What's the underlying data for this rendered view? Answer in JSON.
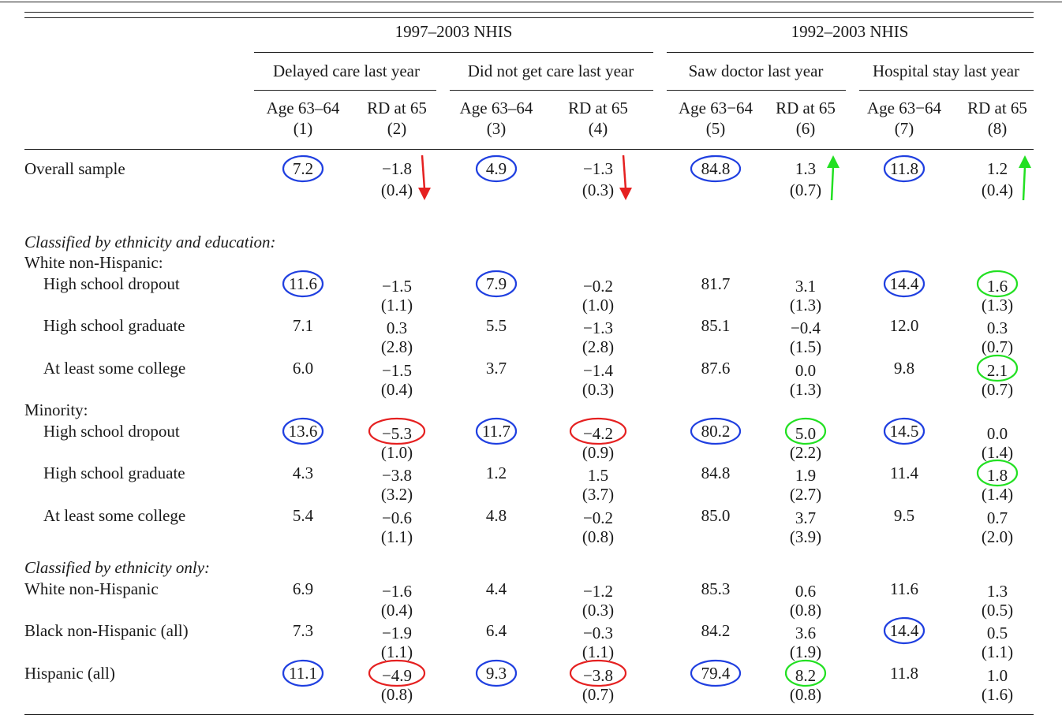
{
  "table": {
    "group_headers": [
      "1997–2003 NHIS",
      "1992–2003 NHIS"
    ],
    "subgroup_headers": [
      "Delayed care last year",
      "Did not get care last year",
      "Saw doctor last year",
      "Hospital stay last year"
    ],
    "column_headers": [
      {
        "label": "Age 63–64",
        "num": "(1)"
      },
      {
        "label": "RD at 65",
        "num": "(2)"
      },
      {
        "label": "Age 63–64",
        "num": "(3)"
      },
      {
        "label": "RD at 65",
        "num": "(4)"
      },
      {
        "label": "Age 63−64",
        "num": "(5)"
      },
      {
        "label": "RD at 65",
        "num": "(6)"
      },
      {
        "label": "Age 63−64",
        "num": "(7)"
      },
      {
        "label": "RD at 65",
        "num": "(8)"
      }
    ],
    "section_headers": [
      "Classified by ethnicity and education:",
      "Classified by ethnicity only:"
    ],
    "group_labels": [
      "White non-Hispanic:",
      "Minority:"
    ],
    "rows": [
      {
        "label": "Overall sample",
        "values": [
          "7.2",
          "−1.8",
          "4.9",
          "−1.3",
          "84.8",
          "1.3",
          "11.8",
          "1.2"
        ],
        "se": [
          "",
          "(0.4)",
          "",
          "(0.3)",
          "",
          "(0.7)",
          "",
          "(0.4)"
        ]
      },
      {
        "label": "High school dropout",
        "values": [
          "11.6",
          "−1.5",
          "7.9",
          "−0.2",
          "81.7",
          "3.1",
          "14.4",
          "1.6"
        ],
        "se": [
          "",
          "(1.1)",
          "",
          "(1.0)",
          "",
          "(1.3)",
          "",
          "(1.3)"
        ]
      },
      {
        "label": "High school graduate",
        "values": [
          "7.1",
          "0.3",
          "5.5",
          "−1.3",
          "85.1",
          "−0.4",
          "12.0",
          "0.3"
        ],
        "se": [
          "",
          "(2.8)",
          "",
          "(2.8)",
          "",
          "(1.5)",
          "",
          "(0.7)"
        ]
      },
      {
        "label": "At least some college",
        "values": [
          "6.0",
          "−1.5",
          "3.7",
          "−1.4",
          "87.6",
          "0.0",
          "9.8",
          "2.1"
        ],
        "se": [
          "",
          "(0.4)",
          "",
          "(0.3)",
          "",
          "(1.3)",
          "",
          "(0.7)"
        ]
      },
      {
        "label": "High school dropout",
        "values": [
          "13.6",
          "−5.3",
          "11.7",
          "−4.2",
          "80.2",
          "5.0",
          "14.5",
          "0.0"
        ],
        "se": [
          "",
          "(1.0)",
          "",
          "(0.9)",
          "",
          "(2.2)",
          "",
          "(1.4)"
        ]
      },
      {
        "label": "High school graduate",
        "values": [
          "4.3",
          "−3.8",
          "1.2",
          "1.5",
          "84.8",
          "1.9",
          "11.4",
          "1.8"
        ],
        "se": [
          "",
          "(3.2)",
          "",
          "(3.7)",
          "",
          "(2.7)",
          "",
          "(1.4)"
        ]
      },
      {
        "label": "At least some college",
        "values": [
          "5.4",
          "−0.6",
          "4.8",
          "−0.2",
          "85.0",
          "3.7",
          "9.5",
          "0.7"
        ],
        "se": [
          "",
          "(1.1)",
          "",
          "(0.8)",
          "",
          "(3.9)",
          "",
          "(2.0)"
        ]
      },
      {
        "label": "White non-Hispanic",
        "values": [
          "6.9",
          "−1.6",
          "4.4",
          "−1.2",
          "85.3",
          "0.6",
          "11.6",
          "1.3"
        ],
        "se": [
          "",
          "(0.4)",
          "",
          "(0.3)",
          "",
          "(0.8)",
          "",
          "(0.5)"
        ]
      },
      {
        "label": "Black non-Hispanic (all)",
        "values": [
          "7.3",
          "−1.9",
          "6.4",
          "−0.3",
          "84.2",
          "3.6",
          "14.4",
          "0.5"
        ],
        "se": [
          "",
          "(1.1)",
          "",
          "(1.1)",
          "",
          "(1.9)",
          "",
          "(1.1)"
        ]
      },
      {
        "label": "Hispanic (all)",
        "values": [
          "11.1",
          "−4.9",
          "9.3",
          "−3.8",
          "79.4",
          "8.2",
          "11.8",
          "1.0"
        ],
        "se": [
          "",
          "(0.8)",
          "",
          "(0.7)",
          "",
          "(0.8)",
          "",
          "(1.6)"
        ]
      }
    ]
  },
  "annotations": {
    "circles": [
      {
        "row": 0,
        "col": 0,
        "color": "#1f3fe0"
      },
      {
        "row": 0,
        "col": 2,
        "color": "#1f3fe0"
      },
      {
        "row": 0,
        "col": 4,
        "color": "#1f3fe0"
      },
      {
        "row": 0,
        "col": 6,
        "color": "#1f3fe0"
      },
      {
        "row": 1,
        "col": 0,
        "color": "#1f3fe0"
      },
      {
        "row": 1,
        "col": 2,
        "color": "#1f3fe0"
      },
      {
        "row": 1,
        "col": 6,
        "color": "#1f3fe0"
      },
      {
        "row": 1,
        "col": 7,
        "color": "#22e022"
      },
      {
        "row": 3,
        "col": 7,
        "color": "#22e022"
      },
      {
        "row": 4,
        "col": 0,
        "color": "#1f3fe0"
      },
      {
        "row": 4,
        "col": 1,
        "color": "#e52020"
      },
      {
        "row": 4,
        "col": 2,
        "color": "#1f3fe0"
      },
      {
        "row": 4,
        "col": 3,
        "color": "#e52020"
      },
      {
        "row": 4,
        "col": 4,
        "color": "#1f3fe0"
      },
      {
        "row": 4,
        "col": 5,
        "color": "#22e022"
      },
      {
        "row": 4,
        "col": 6,
        "color": "#1f3fe0"
      },
      {
        "row": 5,
        "col": 7,
        "color": "#22e022"
      },
      {
        "row": 8,
        "col": 6,
        "color": "#1f3fe0"
      },
      {
        "row": 9,
        "col": 0,
        "color": "#1f3fe0"
      },
      {
        "row": 9,
        "col": 1,
        "color": "#e52020"
      },
      {
        "row": 9,
        "col": 2,
        "color": "#1f3fe0"
      },
      {
        "row": 9,
        "col": 3,
        "color": "#e52020"
      },
      {
        "row": 9,
        "col": 4,
        "color": "#1f3fe0"
      },
      {
        "row": 9,
        "col": 5,
        "color": "#22e022"
      }
    ],
    "arrows": [
      {
        "row": 0,
        "col": 1,
        "direction": "down",
        "color": "#e52020"
      },
      {
        "row": 0,
        "col": 3,
        "direction": "down",
        "color": "#e52020"
      },
      {
        "row": 0,
        "col": 5,
        "direction": "up",
        "color": "#22e022"
      },
      {
        "row": 0,
        "col": 7,
        "direction": "up",
        "color": "#22e022"
      }
    ]
  }
}
